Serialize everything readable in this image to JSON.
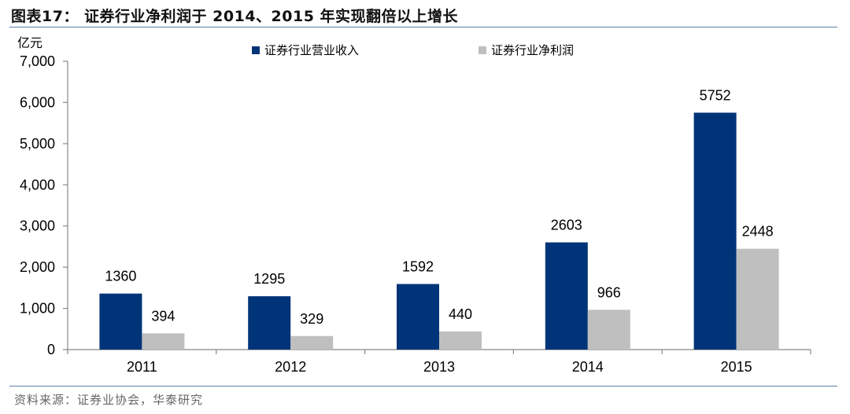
{
  "title": "图表17：  证券行业净利润于 2014、2015 年实现翻倍以上增长",
  "source": "资料来源：证券业协会，华泰研究",
  "chart_data": {
    "type": "bar",
    "unit_label": "亿元",
    "categories": [
      "2011",
      "2012",
      "2013",
      "2014",
      "2015"
    ],
    "series": [
      {
        "name": "证券行业营业收入",
        "values": [
          1360,
          1295,
          1592,
          2603,
          5752
        ],
        "color": "#003478"
      },
      {
        "name": "证券行业净利润",
        "values": [
          394,
          329,
          440,
          966,
          2448
        ],
        "color": "#bfbfbf"
      }
    ],
    "ylim": [
      0,
      7000
    ],
    "yticks": [
      "0",
      "1,000",
      "2,000",
      "3,000",
      "4,000",
      "5,000",
      "6,000",
      "7,000"
    ],
    "data_labels": true,
    "legend": "top",
    "grid": false
  }
}
